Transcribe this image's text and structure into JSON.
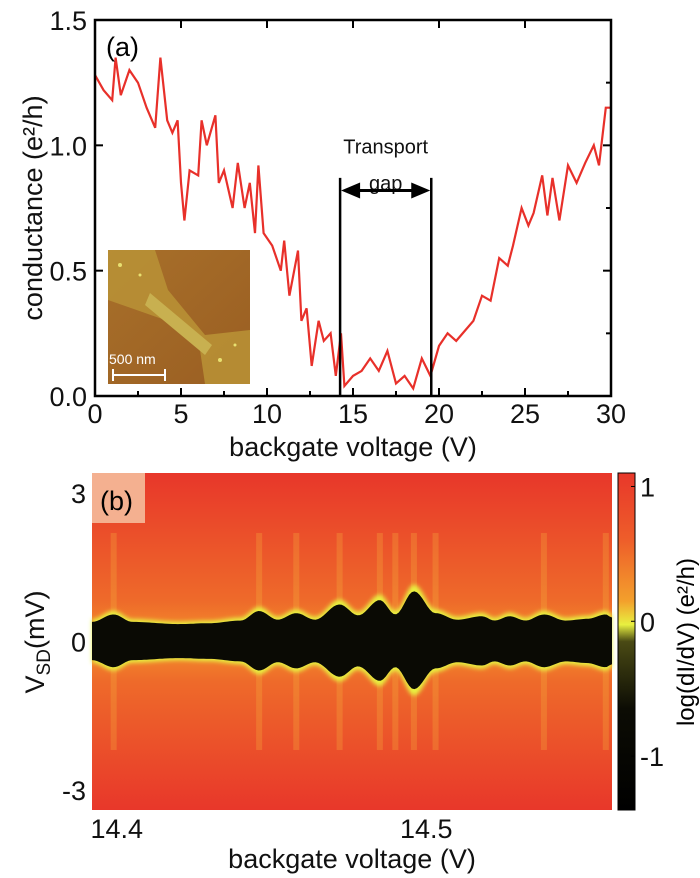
{
  "chart_data": [
    {
      "panel_label": "(a)",
      "type": "line",
      "xlabel": "backgate voltage (V)",
      "ylabel": "conductance (e²/h)",
      "xlim": [
        0,
        30
      ],
      "ylim": [
        0,
        1.5
      ],
      "xticks": [
        "0",
        "5",
        "10",
        "15",
        "20",
        "25",
        "30"
      ],
      "yticks": [
        "0.0",
        "0.5",
        "1.0",
        "1.5"
      ],
      "grid": false,
      "line_color": "#e8302a",
      "series": [
        {
          "x": [
            0,
            0.5,
            1,
            1.2,
            1.5,
            2,
            2.5,
            3,
            3.5,
            3.8,
            4.2,
            4.5,
            4.8,
            5.0,
            5.2,
            5.5,
            6.0,
            6.2,
            6.5,
            7.0,
            7.2,
            7.5,
            8.0,
            8.3,
            8.7,
            9.0,
            9.3,
            9.5,
            9.8,
            10.3,
            10.8,
            11.0,
            11.3,
            11.8,
            12.0,
            12.3,
            12.6,
            13.0,
            13.3,
            13.7,
            14.0,
            14.3,
            14.5,
            15,
            15.5,
            16,
            16.5,
            17,
            17.5,
            18,
            18.5,
            19,
            19.5,
            20,
            20.5,
            21,
            22,
            22.5,
            23,
            23.5,
            24,
            24.3,
            24.8,
            25.2,
            25.5,
            26,
            26.3,
            26.6,
            27,
            27.5,
            28,
            28.5,
            29,
            29.3,
            29.7,
            30
          ],
          "y": [
            1.28,
            1.22,
            1.18,
            1.35,
            1.2,
            1.3,
            1.25,
            1.15,
            1.07,
            1.35,
            1.1,
            1.05,
            1.1,
            0.85,
            0.7,
            0.9,
            0.88,
            1.1,
            1.0,
            1.12,
            0.85,
            0.9,
            0.75,
            0.93,
            0.75,
            0.85,
            0.65,
            0.92,
            0.65,
            0.6,
            0.5,
            0.62,
            0.4,
            0.58,
            0.3,
            0.35,
            0.12,
            0.3,
            0.22,
            0.25,
            0.08,
            0.25,
            0.04,
            0.08,
            0.1,
            0.15,
            0.1,
            0.18,
            0.05,
            0.08,
            0.03,
            0.15,
            0.08,
            0.2,
            0.25,
            0.22,
            0.3,
            0.4,
            0.38,
            0.55,
            0.52,
            0.6,
            0.75,
            0.68,
            0.73,
            0.88,
            0.72,
            0.87,
            0.7,
            0.92,
            0.85,
            0.93,
            1.0,
            0.92,
            1.15,
            1.15
          ]
        }
      ],
      "annotations": {
        "gap_title": "Transport",
        "gap_subtitle": "gap",
        "gap_bounds_V": [
          14.25,
          19.55
        ]
      },
      "inset": {
        "scale_bar_label": "500 nm"
      }
    },
    {
      "panel_label": "(b)",
      "type": "heatmap",
      "xlabel": "backgate voltage (V)",
      "ylabel_main": "V",
      "ylabel_sub": "SD",
      "ylabel_unit": "(mV)",
      "xlim": [
        14.392,
        14.56
      ],
      "ylim": [
        -3.4,
        3.4
      ],
      "xticks": [
        "14.4",
        "14.5"
      ],
      "yticks": [
        "3",
        "0",
        "-3"
      ],
      "colorbar": {
        "label": "log(dI/dV) (e²/h)",
        "range": [
          -1.4,
          1.1
        ],
        "ticks": [
          "1",
          "0",
          "-1"
        ],
        "colors": [
          "#000000",
          "#2a2a10",
          "#e8f040",
          "#f0902a",
          "#e8372a"
        ]
      },
      "gap_edge_mV": {
        "x": [
          14.392,
          14.399,
          14.405,
          14.42,
          14.43,
          14.44,
          14.446,
          14.452,
          14.458,
          14.464,
          14.472,
          14.478,
          14.485,
          14.49,
          14.496,
          14.503,
          14.51,
          14.518,
          14.522,
          14.527,
          14.532,
          14.538,
          14.545,
          14.552,
          14.558,
          14.56
        ],
        "y": [
          0.45,
          0.62,
          0.45,
          0.4,
          0.42,
          0.48,
          0.7,
          0.5,
          0.65,
          0.5,
          0.85,
          0.6,
          0.95,
          0.62,
          1.15,
          0.65,
          0.5,
          0.58,
          0.48,
          0.58,
          0.48,
          0.62,
          0.48,
          0.52,
          0.62,
          0.55
        ]
      }
    }
  ]
}
